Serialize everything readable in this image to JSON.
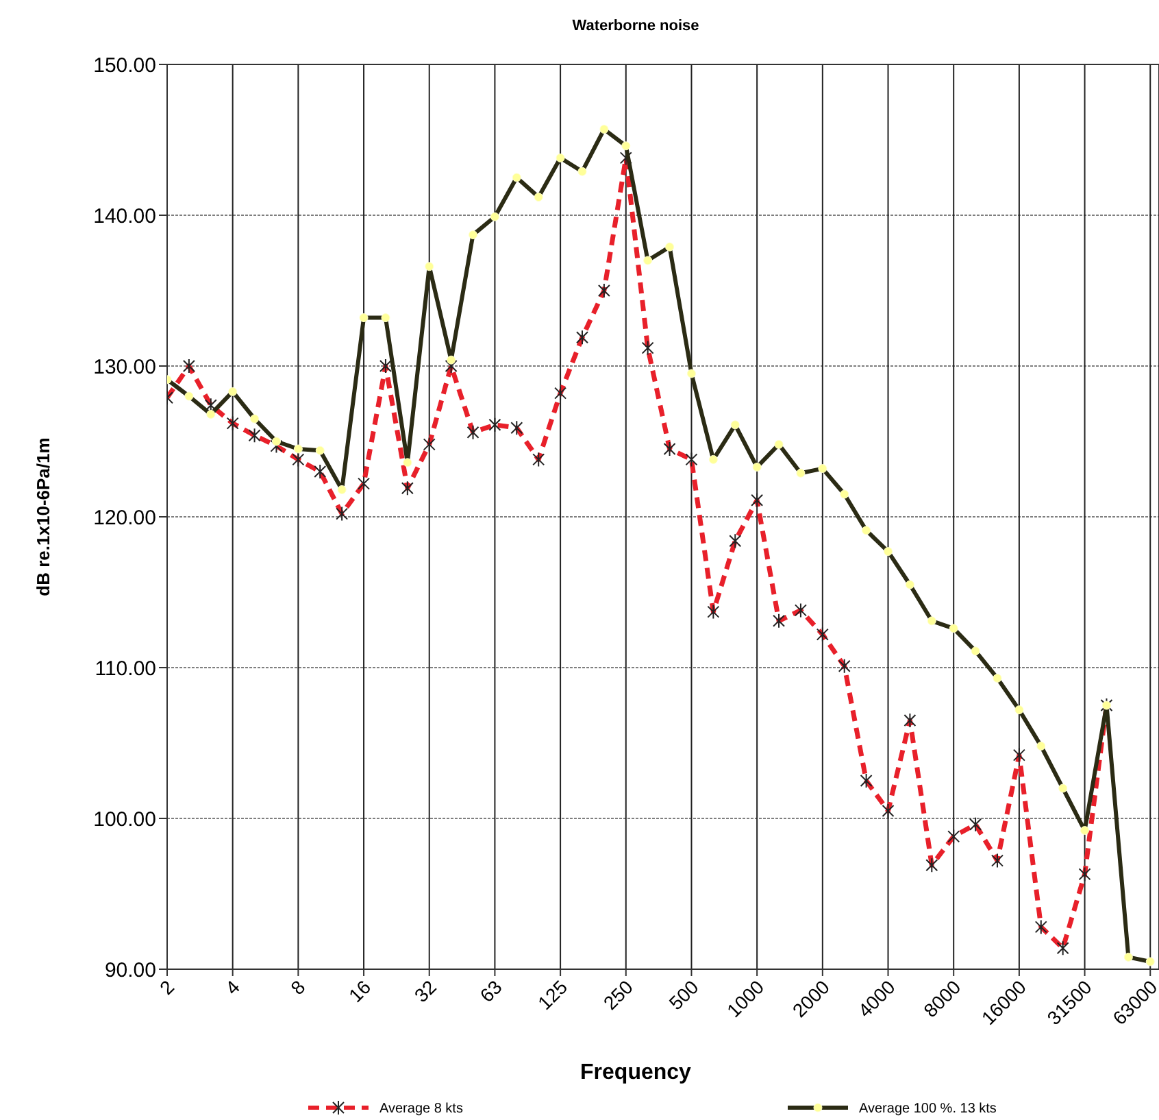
{
  "chart_data": {
    "type": "line",
    "title": "Waterborne noise",
    "xlabel": "Frequency",
    "ylabel": "dB re.1x10-6Pa/1m",
    "categories": [
      "2",
      null,
      null,
      "4",
      null,
      null,
      "8",
      null,
      null,
      "16",
      null,
      null,
      "32",
      null,
      null,
      "63",
      null,
      null,
      "125",
      null,
      null,
      "250",
      null,
      null,
      "500",
      null,
      null,
      "1000",
      null,
      null,
      "2000",
      null,
      null,
      "4000",
      null,
      null,
      "8000",
      null,
      null,
      "16000",
      null,
      null,
      "31500",
      null,
      null,
      "63000"
    ],
    "series": [
      {
        "name": "Average  8 kts",
        "color": "#e8202a",
        "line_style": "dashed",
        "marker": "cross",
        "values": [
          127.9,
          130.0,
          127.4,
          126.2,
          125.4,
          124.7,
          123.8,
          123.0,
          120.2,
          122.2,
          130.0,
          121.9,
          124.8,
          130.0,
          125.6,
          126.1,
          125.9,
          123.8,
          128.2,
          131.9,
          135.0,
          143.8,
          131.2,
          124.5,
          123.8,
          113.7,
          118.4,
          121.1,
          113.1,
          113.8,
          112.2,
          110.1,
          102.5,
          100.5,
          106.5,
          96.9,
          98.8,
          99.6,
          97.2,
          104.2,
          92.8,
          91.4,
          96.3,
          107.5,
          null,
          null
        ]
      },
      {
        "name": "Average 100 %. 13 kts",
        "color": "#2b2b14",
        "line_style": "solid",
        "marker": "circle",
        "values": [
          129.1,
          128.0,
          126.8,
          128.3,
          126.5,
          125.0,
          124.5,
          124.4,
          121.8,
          133.2,
          133.2,
          123.6,
          136.6,
          130.4,
          138.7,
          139.9,
          142.5,
          141.2,
          143.8,
          142.9,
          145.7,
          144.6,
          137.0,
          137.9,
          129.5,
          123.8,
          126.1,
          123.3,
          124.8,
          122.9,
          123.2,
          121.5,
          119.1,
          117.7,
          115.5,
          113.1,
          112.6,
          111.1,
          109.3,
          107.2,
          104.8,
          102.0,
          99.2,
          107.5,
          90.8,
          90.5
        ]
      }
    ],
    "ylim": [
      90,
      150
    ],
    "yticks": [
      {
        "value": 90,
        "label": "90.00"
      },
      {
        "value": 100,
        "label": "100.00"
      },
      {
        "value": 110,
        "label": "110.00"
      },
      {
        "value": 120,
        "label": "120.00"
      },
      {
        "value": 130,
        "label": "130.00"
      },
      {
        "value": 140,
        "label": "140.00"
      },
      {
        "value": 150,
        "label": "150.00"
      }
    ],
    "grid": true,
    "legend": "bottom"
  }
}
